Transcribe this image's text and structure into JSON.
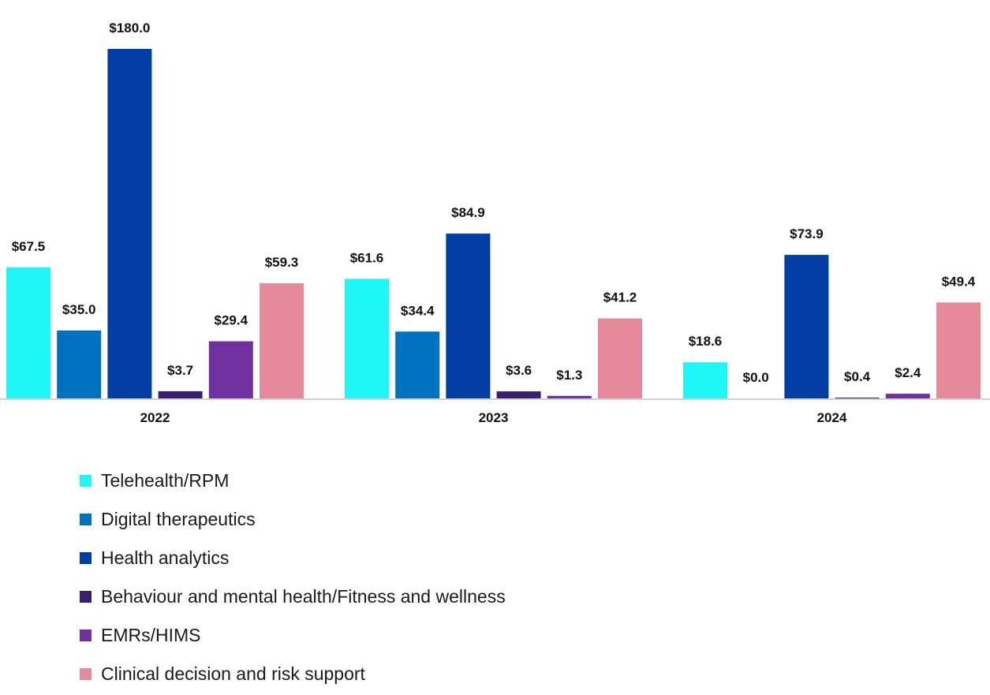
{
  "chart_data": {
    "type": "bar",
    "categories": [
      "2022",
      "2023",
      "2024"
    ],
    "series": [
      {
        "name": "Telehealth/RPM",
        "color": "#1ff6f6",
        "values": [
          67.5,
          61.6,
          18.6
        ],
        "labels": [
          "$67.5",
          "$61.6",
          "$18.6"
        ]
      },
      {
        "name": "Digital therapeutics",
        "color": "#0070c0",
        "values": [
          35.0,
          34.4,
          0.0
        ],
        "labels": [
          "$35.0",
          "$34.4",
          "$0.0"
        ]
      },
      {
        "name": "Health analytics",
        "color": "#003da5",
        "values": [
          180.0,
          84.9,
          73.9
        ],
        "labels": [
          "$180.0",
          "$84.9",
          "$73.9"
        ]
      },
      {
        "name": "Behaviour and mental health/Fitness and wellness",
        "color": "#3b1f6e",
        "values": [
          3.7,
          3.6,
          0.4
        ],
        "labels": [
          "$3.7",
          "$3.6",
          "$0.4"
        ]
      },
      {
        "name": "EMRs/HIMS",
        "color": "#7030a0",
        "values": [
          29.4,
          1.3,
          2.4
        ],
        "labels": [
          "$29.4",
          "$1.3",
          "$2.4"
        ]
      },
      {
        "name": "Clinical decision and risk support",
        "color": "#e5899b",
        "values": [
          59.3,
          41.2,
          49.4
        ],
        "labels": [
          "$59.3",
          "$41.2",
          "$49.4"
        ]
      }
    ],
    "ylim": [
      0,
      180
    ],
    "grid": false,
    "legend_position": "bottom-left",
    "axis_color": "#d0d0d0"
  }
}
